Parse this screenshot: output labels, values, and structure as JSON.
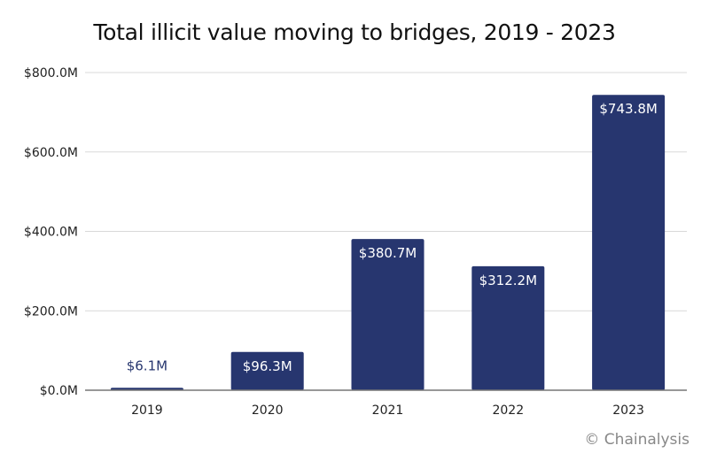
{
  "chart_data": {
    "type": "bar",
    "title": "Total illicit value moving to bridges, 2019 - 2023",
    "xlabel": "",
    "ylabel": "",
    "categories": [
      "2019",
      "2020",
      "2021",
      "2022",
      "2023"
    ],
    "values": [
      6.1,
      96.3,
      380.7,
      312.2,
      743.8
    ],
    "data_labels": [
      "$6.1M",
      "$96.3M",
      "$380.7M",
      "$312.2M",
      "$743.8M"
    ],
    "unit": "USD millions",
    "ylim": [
      0,
      800
    ],
    "yticks": [
      0,
      200,
      400,
      600,
      800
    ],
    "ytick_labels": [
      "$0.0M",
      "$200.0M",
      "$400.0M",
      "$600.0M",
      "$800.0M"
    ],
    "grid": true,
    "legend": "none",
    "colors": {
      "bar": "#27366f",
      "label_inside": "#ffffff",
      "label_outside": "#27366f",
      "grid": "#d9d9d9",
      "axis": "#777777"
    }
  },
  "credit": "© Chainalysis"
}
